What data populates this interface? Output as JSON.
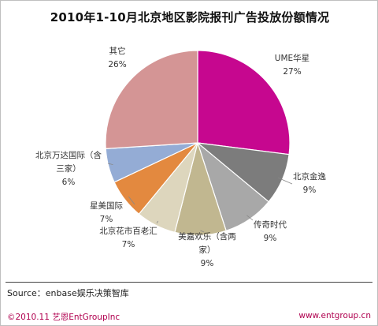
{
  "title": "2010年1-10月北京地区影院报刊广告投放份额情况",
  "source": "Source：enbase娱乐决策智库",
  "footer": {
    "left": "©2010.11 艺恩EntGroupInc",
    "right": "www.entgroup.cn"
  },
  "chart_data": {
    "type": "pie",
    "title": "2010年1-10月北京地区影院报刊广告投放份额情况",
    "slices": [
      {
        "name": "UME华星",
        "label_lines": [
          "UME华星"
        ],
        "value_label": "27%",
        "value": 27,
        "color": "#c6078f"
      },
      {
        "name": "北京金逸",
        "label_lines": [
          "北京金逸"
        ],
        "value_label": "9%",
        "value": 9,
        "color": "#7c7c7c"
      },
      {
        "name": "传奇时代",
        "label_lines": [
          "传奇时代"
        ],
        "value_label": "9%",
        "value": 9,
        "color": "#a8a8a8"
      },
      {
        "name": "美嘉欢乐（含两家）",
        "label_lines": [
          "美嘉欢乐（含两",
          "家）"
        ],
        "value_label": "9%",
        "value": 9,
        "color": "#c1b790"
      },
      {
        "name": "北京花市百老汇",
        "label_lines": [
          "北京花市百老汇"
        ],
        "value_label": "7%",
        "value": 7,
        "color": "#ddd6bd"
      },
      {
        "name": "星美国际",
        "label_lines": [
          "星美国际"
        ],
        "value_label": "7%",
        "value": 7,
        "color": "#e3893f"
      },
      {
        "name": "北京万达国际（含三家）",
        "label_lines": [
          "北京万达国际（含",
          "三家）"
        ],
        "value_label": "6%",
        "value": 6,
        "color": "#94acd5"
      },
      {
        "name": "其它",
        "label_lines": [
          "其它"
        ],
        "value_label": "26%",
        "value": 26,
        "color": "#d49595"
      }
    ]
  }
}
